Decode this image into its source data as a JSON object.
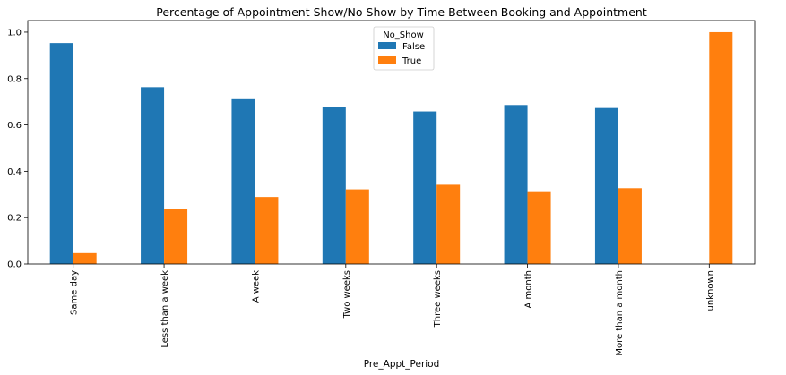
{
  "chart_data": {
    "type": "bar",
    "title": "Percentage of Appointment Show/No Show by Time Between Booking and Appointment",
    "xlabel": "Pre_Appt_Period",
    "ylabel": "",
    "ylim": [
      0,
      1.05
    ],
    "yticks": [
      "0.0",
      "0.2",
      "0.4",
      "0.6",
      "0.8",
      "1.0"
    ],
    "grid": false,
    "legend": {
      "title": "No_Show",
      "placement": "top-center"
    },
    "categories": [
      "Same day",
      "Less than a week",
      "A week",
      "Two weeks",
      "Three weeks",
      "A month",
      "More than a month",
      "unknown"
    ],
    "series": [
      {
        "name": "False",
        "color": "#1f77b4",
        "values": [
          0.953,
          0.763,
          0.711,
          0.678,
          0.658,
          0.686,
          0.673,
          0
        ]
      },
      {
        "name": "True",
        "color": "#ff7f0e",
        "values": [
          0.047,
          0.237,
          0.289,
          0.322,
          0.342,
          0.314,
          0.327,
          1.0
        ]
      }
    ]
  }
}
